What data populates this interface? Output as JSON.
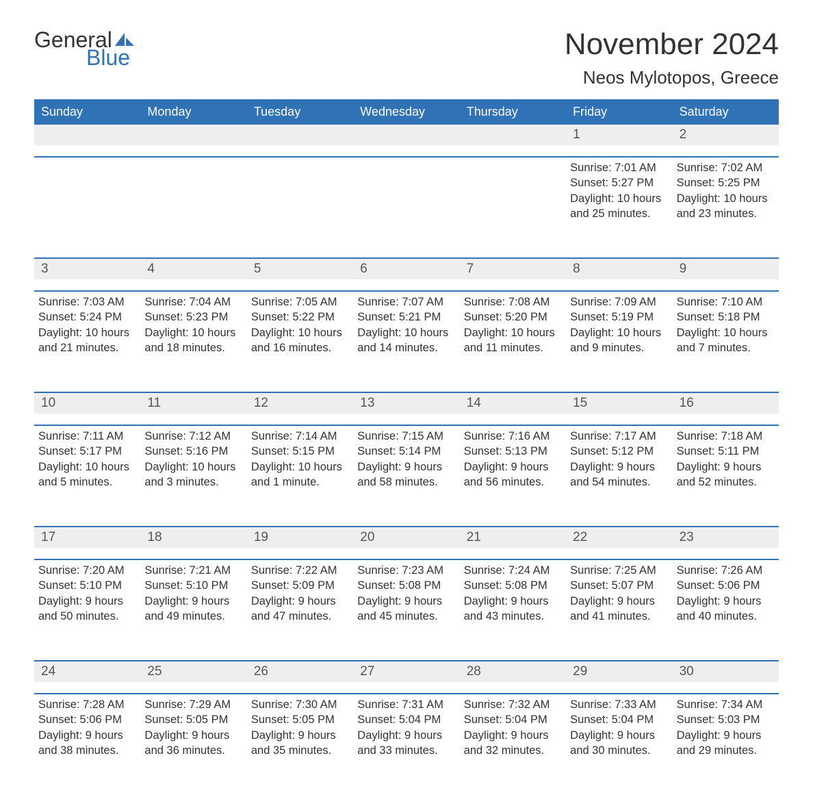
{
  "logo": {
    "line1": "General",
    "line2": "Blue"
  },
  "title": "November 2024",
  "subtitle": "Neos Mylotopos, Greece",
  "colors": {
    "brand_blue": "#2f72b6",
    "header_text": "#ffffff",
    "daynum_bg": "#eeeeee",
    "text": "#333333",
    "background": "#ffffff"
  },
  "typography": {
    "title_fontsize_pt": 33,
    "subtitle_fontsize_pt": 20,
    "dow_fontsize_pt": 14,
    "daynum_fontsize_pt": 14,
    "body_fontsize_pt": 12,
    "font_family": "Arial"
  },
  "days_of_week": [
    "Sunday",
    "Monday",
    "Tuesday",
    "Wednesday",
    "Thursday",
    "Friday",
    "Saturday"
  ],
  "weeks": [
    [
      null,
      null,
      null,
      null,
      null,
      {
        "n": "1",
        "sunrise": "Sunrise: 7:01 AM",
        "sunset": "Sunset: 5:27 PM",
        "dl1": "Daylight: 10 hours",
        "dl2": "and 25 minutes."
      },
      {
        "n": "2",
        "sunrise": "Sunrise: 7:02 AM",
        "sunset": "Sunset: 5:25 PM",
        "dl1": "Daylight: 10 hours",
        "dl2": "and 23 minutes."
      }
    ],
    [
      {
        "n": "3",
        "sunrise": "Sunrise: 7:03 AM",
        "sunset": "Sunset: 5:24 PM",
        "dl1": "Daylight: 10 hours",
        "dl2": "and 21 minutes."
      },
      {
        "n": "4",
        "sunrise": "Sunrise: 7:04 AM",
        "sunset": "Sunset: 5:23 PM",
        "dl1": "Daylight: 10 hours",
        "dl2": "and 18 minutes."
      },
      {
        "n": "5",
        "sunrise": "Sunrise: 7:05 AM",
        "sunset": "Sunset: 5:22 PM",
        "dl1": "Daylight: 10 hours",
        "dl2": "and 16 minutes."
      },
      {
        "n": "6",
        "sunrise": "Sunrise: 7:07 AM",
        "sunset": "Sunset: 5:21 PM",
        "dl1": "Daylight: 10 hours",
        "dl2": "and 14 minutes."
      },
      {
        "n": "7",
        "sunrise": "Sunrise: 7:08 AM",
        "sunset": "Sunset: 5:20 PM",
        "dl1": "Daylight: 10 hours",
        "dl2": "and 11 minutes."
      },
      {
        "n": "8",
        "sunrise": "Sunrise: 7:09 AM",
        "sunset": "Sunset: 5:19 PM",
        "dl1": "Daylight: 10 hours",
        "dl2": "and 9 minutes."
      },
      {
        "n": "9",
        "sunrise": "Sunrise: 7:10 AM",
        "sunset": "Sunset: 5:18 PM",
        "dl1": "Daylight: 10 hours",
        "dl2": "and 7 minutes."
      }
    ],
    [
      {
        "n": "10",
        "sunrise": "Sunrise: 7:11 AM",
        "sunset": "Sunset: 5:17 PM",
        "dl1": "Daylight: 10 hours",
        "dl2": "and 5 minutes."
      },
      {
        "n": "11",
        "sunrise": "Sunrise: 7:12 AM",
        "sunset": "Sunset: 5:16 PM",
        "dl1": "Daylight: 10 hours",
        "dl2": "and 3 minutes."
      },
      {
        "n": "12",
        "sunrise": "Sunrise: 7:14 AM",
        "sunset": "Sunset: 5:15 PM",
        "dl1": "Daylight: 10 hours",
        "dl2": "and 1 minute."
      },
      {
        "n": "13",
        "sunrise": "Sunrise: 7:15 AM",
        "sunset": "Sunset: 5:14 PM",
        "dl1": "Daylight: 9 hours",
        "dl2": "and 58 minutes."
      },
      {
        "n": "14",
        "sunrise": "Sunrise: 7:16 AM",
        "sunset": "Sunset: 5:13 PM",
        "dl1": "Daylight: 9 hours",
        "dl2": "and 56 minutes."
      },
      {
        "n": "15",
        "sunrise": "Sunrise: 7:17 AM",
        "sunset": "Sunset: 5:12 PM",
        "dl1": "Daylight: 9 hours",
        "dl2": "and 54 minutes."
      },
      {
        "n": "16",
        "sunrise": "Sunrise: 7:18 AM",
        "sunset": "Sunset: 5:11 PM",
        "dl1": "Daylight: 9 hours",
        "dl2": "and 52 minutes."
      }
    ],
    [
      {
        "n": "17",
        "sunrise": "Sunrise: 7:20 AM",
        "sunset": "Sunset: 5:10 PM",
        "dl1": "Daylight: 9 hours",
        "dl2": "and 50 minutes."
      },
      {
        "n": "18",
        "sunrise": "Sunrise: 7:21 AM",
        "sunset": "Sunset: 5:10 PM",
        "dl1": "Daylight: 9 hours",
        "dl2": "and 49 minutes."
      },
      {
        "n": "19",
        "sunrise": "Sunrise: 7:22 AM",
        "sunset": "Sunset: 5:09 PM",
        "dl1": "Daylight: 9 hours",
        "dl2": "and 47 minutes."
      },
      {
        "n": "20",
        "sunrise": "Sunrise: 7:23 AM",
        "sunset": "Sunset: 5:08 PM",
        "dl1": "Daylight: 9 hours",
        "dl2": "and 45 minutes."
      },
      {
        "n": "21",
        "sunrise": "Sunrise: 7:24 AM",
        "sunset": "Sunset: 5:08 PM",
        "dl1": "Daylight: 9 hours",
        "dl2": "and 43 minutes."
      },
      {
        "n": "22",
        "sunrise": "Sunrise: 7:25 AM",
        "sunset": "Sunset: 5:07 PM",
        "dl1": "Daylight: 9 hours",
        "dl2": "and 41 minutes."
      },
      {
        "n": "23",
        "sunrise": "Sunrise: 7:26 AM",
        "sunset": "Sunset: 5:06 PM",
        "dl1": "Daylight: 9 hours",
        "dl2": "and 40 minutes."
      }
    ],
    [
      {
        "n": "24",
        "sunrise": "Sunrise: 7:28 AM",
        "sunset": "Sunset: 5:06 PM",
        "dl1": "Daylight: 9 hours",
        "dl2": "and 38 minutes."
      },
      {
        "n": "25",
        "sunrise": "Sunrise: 7:29 AM",
        "sunset": "Sunset: 5:05 PM",
        "dl1": "Daylight: 9 hours",
        "dl2": "and 36 minutes."
      },
      {
        "n": "26",
        "sunrise": "Sunrise: 7:30 AM",
        "sunset": "Sunset: 5:05 PM",
        "dl1": "Daylight: 9 hours",
        "dl2": "and 35 minutes."
      },
      {
        "n": "27",
        "sunrise": "Sunrise: 7:31 AM",
        "sunset": "Sunset: 5:04 PM",
        "dl1": "Daylight: 9 hours",
        "dl2": "and 33 minutes."
      },
      {
        "n": "28",
        "sunrise": "Sunrise: 7:32 AM",
        "sunset": "Sunset: 5:04 PM",
        "dl1": "Daylight: 9 hours",
        "dl2": "and 32 minutes."
      },
      {
        "n": "29",
        "sunrise": "Sunrise: 7:33 AM",
        "sunset": "Sunset: 5:04 PM",
        "dl1": "Daylight: 9 hours",
        "dl2": "and 30 minutes."
      },
      {
        "n": "30",
        "sunrise": "Sunrise: 7:34 AM",
        "sunset": "Sunset: 5:03 PM",
        "dl1": "Daylight: 9 hours",
        "dl2": "and 29 minutes."
      }
    ]
  ]
}
